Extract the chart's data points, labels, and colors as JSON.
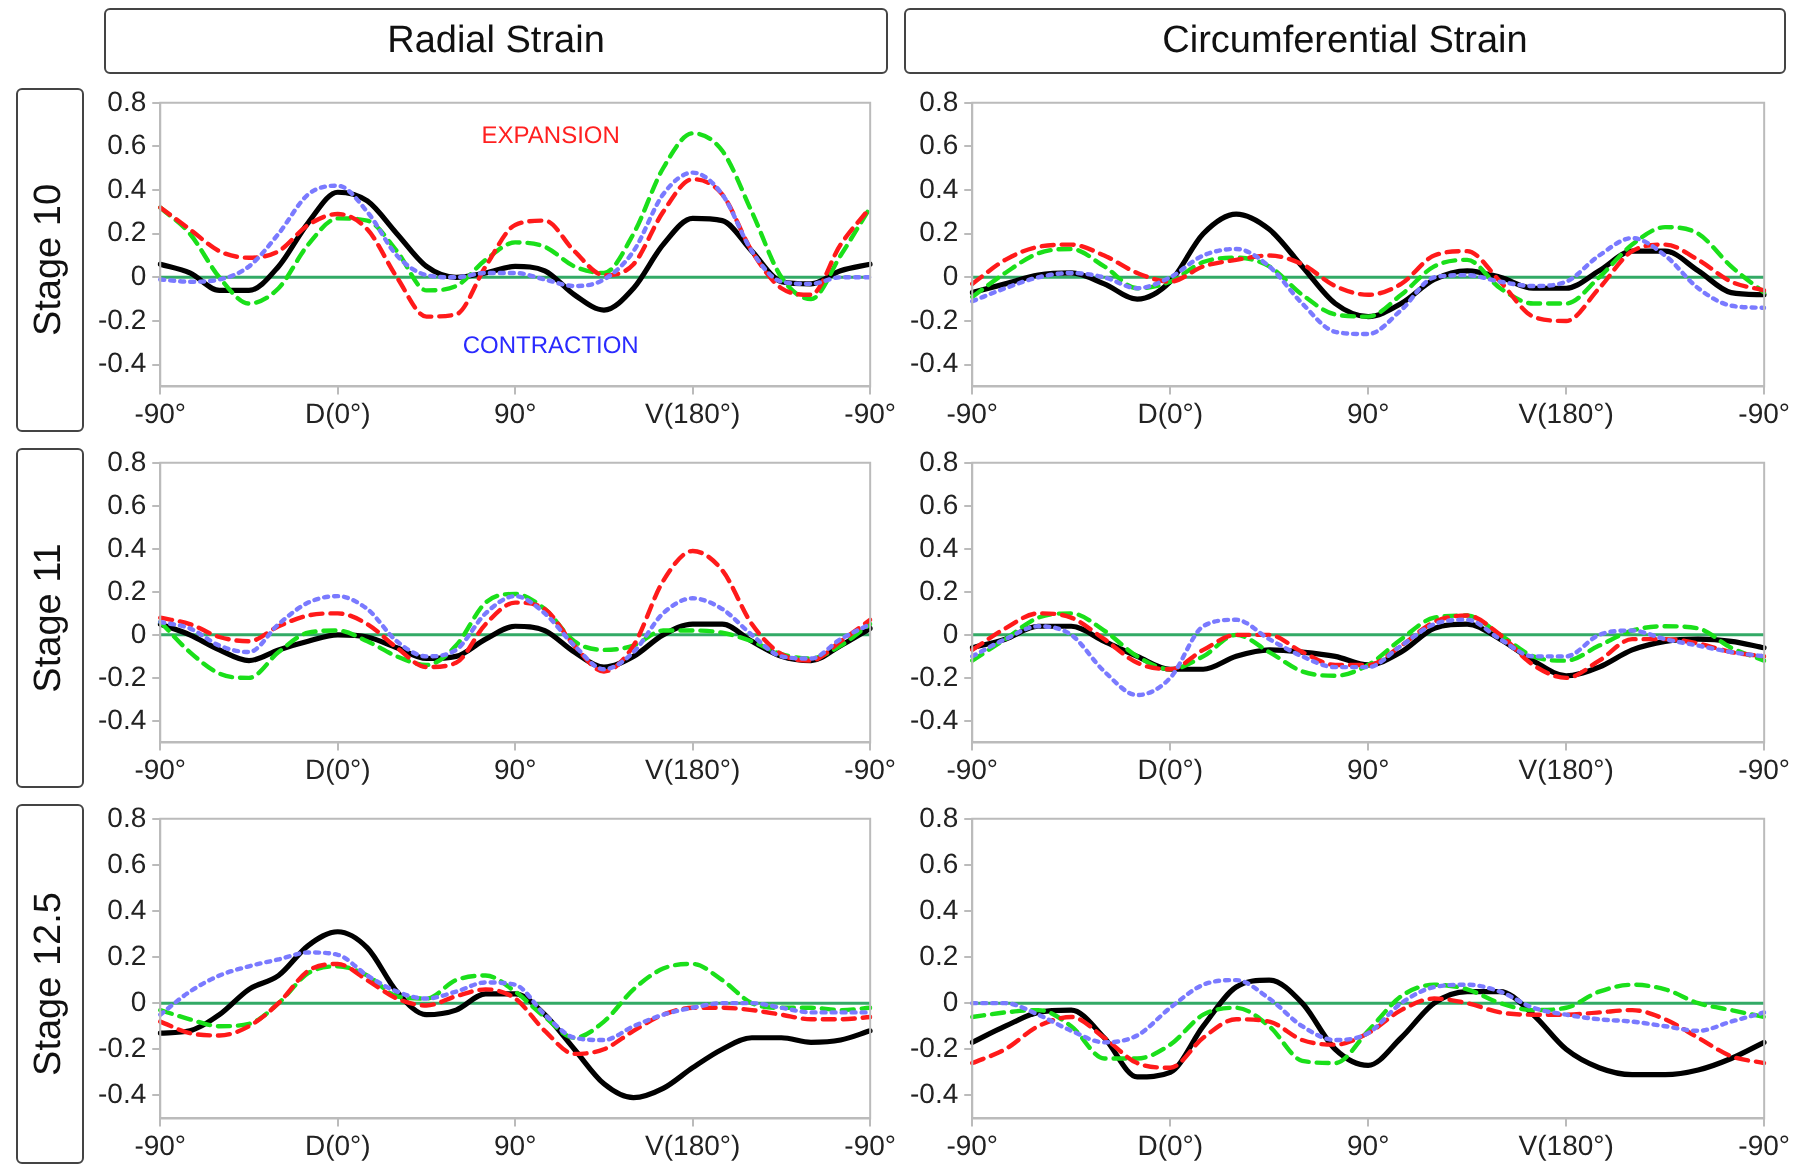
{
  "chart_data": [
    {
      "type": "line",
      "title": "Radial Strain",
      "ylabel": "Stage 10",
      "categories": [
        "-90°",
        null,
        null,
        null,
        null,
        null,
        "D(0°)",
        null,
        null,
        null,
        null,
        null,
        "90°",
        null,
        null,
        null,
        null,
        null,
        "V(180°)",
        null,
        null,
        null,
        null,
        null,
        "-90°"
      ],
      "ylim": [
        -0.5,
        0.8
      ],
      "yticks": [
        -0.4,
        -0.2,
        0,
        0.2,
        0.4,
        0.6,
        0.8
      ],
      "ref_lines": [
        {
          "axis": "y",
          "value": 0,
          "color": "#33aa66"
        }
      ],
      "annotations": [
        "EXPANSION",
        "CONTRACTION"
      ],
      "series": [
        {
          "color": "#7a7aff",
          "line_style": "dotted",
          "values": [
            -0.01,
            -0.02,
            -0.01,
            0.05,
            0.2,
            0.38,
            0.42,
            0.3,
            0.1,
            0.01,
            0.0,
            0.02,
            0.02,
            -0.01,
            -0.04,
            -0.01,
            0.12,
            0.38,
            0.48,
            0.38,
            0.12,
            -0.02,
            -0.03,
            0.0,
            0.0
          ]
        },
        {
          "color": "#ff1a1a",
          "line_style": "dashed",
          "values": [
            0.32,
            0.22,
            0.12,
            0.09,
            0.12,
            0.24,
            0.29,
            0.22,
            0.0,
            -0.18,
            -0.17,
            0.05,
            0.24,
            0.26,
            0.12,
            0.01,
            0.06,
            0.3,
            0.45,
            0.38,
            0.12,
            -0.05,
            -0.08,
            0.15,
            0.32
          ]
        },
        {
          "color": "#1adf1a",
          "line_style": "dashed",
          "values": [
            0.32,
            0.2,
            0.0,
            -0.12,
            -0.05,
            0.15,
            0.27,
            0.26,
            0.12,
            -0.06,
            -0.04,
            0.08,
            0.16,
            0.14,
            0.05,
            0.02,
            0.2,
            0.5,
            0.66,
            0.58,
            0.3,
            0.0,
            -0.1,
            0.1,
            0.32
          ]
        },
        {
          "color": "#000000",
          "line_style": "solid",
          "values": [
            0.06,
            0.02,
            -0.06,
            -0.06,
            0.05,
            0.25,
            0.39,
            0.35,
            0.2,
            0.05,
            0.0,
            0.02,
            0.05,
            0.03,
            -0.08,
            -0.15,
            -0.05,
            0.15,
            0.27,
            0.26,
            0.12,
            -0.02,
            -0.03,
            0.03,
            0.06
          ]
        }
      ]
    },
    {
      "type": "line",
      "title": "Circumferential Strain",
      "categories": [
        "-90°",
        null,
        null,
        null,
        null,
        null,
        "D(0°)",
        null,
        null,
        null,
        null,
        null,
        "90°",
        null,
        null,
        null,
        null,
        null,
        "V(180°)",
        null,
        null,
        null,
        null,
        null,
        "-90°"
      ],
      "ylim": [
        -0.5,
        0.8
      ],
      "yticks": [
        -0.4,
        -0.2,
        0,
        0.2,
        0.4,
        0.6,
        0.8
      ],
      "ref_lines": [
        {
          "axis": "y",
          "value": 0,
          "color": "#33aa66"
        }
      ],
      "series": [
        {
          "color": "#7a7aff",
          "line_style": "dotted",
          "values": [
            -0.11,
            -0.05,
            0.0,
            0.02,
            0.0,
            -0.05,
            0.0,
            0.1,
            0.13,
            0.05,
            -0.12,
            -0.25,
            -0.26,
            -0.15,
            0.0,
            0.01,
            -0.02,
            -0.04,
            -0.02,
            0.1,
            0.18,
            0.1,
            -0.05,
            -0.13,
            -0.14
          ]
        },
        {
          "color": "#ff1a1a",
          "line_style": "dashed",
          "values": [
            -0.03,
            0.08,
            0.14,
            0.15,
            0.1,
            0.02,
            -0.02,
            0.05,
            0.08,
            0.1,
            0.06,
            -0.04,
            -0.08,
            -0.03,
            0.1,
            0.12,
            -0.02,
            -0.18,
            -0.2,
            -0.05,
            0.12,
            0.15,
            0.08,
            -0.02,
            -0.06
          ]
        },
        {
          "color": "#1adf1a",
          "line_style": "dashed",
          "values": [
            -0.09,
            0.02,
            0.11,
            0.13,
            0.05,
            -0.05,
            -0.02,
            0.07,
            0.09,
            0.05,
            -0.08,
            -0.17,
            -0.18,
            -0.08,
            0.05,
            0.08,
            -0.05,
            -0.12,
            -0.12,
            0.0,
            0.15,
            0.23,
            0.2,
            0.05,
            -0.07
          ]
        },
        {
          "color": "#000000",
          "line_style": "solid",
          "values": [
            -0.07,
            -0.03,
            0.01,
            0.02,
            -0.03,
            -0.1,
            -0.02,
            0.2,
            0.29,
            0.22,
            0.05,
            -0.12,
            -0.18,
            -0.12,
            -0.01,
            0.03,
            0.0,
            -0.05,
            -0.05,
            0.03,
            0.12,
            0.12,
            0.03,
            -0.07,
            -0.08
          ]
        }
      ]
    },
    {
      "type": "line",
      "ylabel": "Stage 11",
      "categories": [
        "-90°",
        null,
        null,
        null,
        null,
        null,
        "D(0°)",
        null,
        null,
        null,
        null,
        null,
        "90°",
        null,
        null,
        null,
        null,
        null,
        "V(180°)",
        null,
        null,
        null,
        null,
        null,
        "-90°"
      ],
      "ylim": [
        -0.5,
        0.8
      ],
      "yticks": [
        -0.4,
        -0.2,
        0,
        0.2,
        0.4,
        0.6,
        0.8
      ],
      "ref_lines": [
        {
          "axis": "y",
          "value": 0,
          "color": "#33aa66"
        }
      ],
      "series": [
        {
          "color": "#7a7aff",
          "line_style": "dotted",
          "values": [
            0.06,
            0.03,
            -0.05,
            -0.08,
            0.05,
            0.15,
            0.18,
            0.12,
            -0.03,
            -0.1,
            -0.07,
            0.1,
            0.18,
            0.1,
            -0.05,
            -0.16,
            -0.08,
            0.1,
            0.17,
            0.12,
            0.0,
            -0.1,
            -0.11,
            -0.02,
            0.05
          ]
        },
        {
          "color": "#ff1a1a",
          "line_style": "dashed",
          "values": [
            0.08,
            0.05,
            -0.01,
            -0.03,
            0.04,
            0.09,
            0.1,
            0.05,
            -0.06,
            -0.15,
            -0.13,
            0.05,
            0.15,
            0.12,
            -0.05,
            -0.17,
            -0.05,
            0.25,
            0.39,
            0.3,
            0.05,
            -0.09,
            -0.12,
            -0.03,
            0.07
          ]
        },
        {
          "color": "#1adf1a",
          "line_style": "dashed",
          "values": [
            0.06,
            -0.08,
            -0.18,
            -0.2,
            -0.08,
            0.01,
            0.02,
            -0.03,
            -0.1,
            -0.14,
            -0.05,
            0.15,
            0.19,
            0.12,
            -0.03,
            -0.07,
            -0.05,
            0.02,
            0.02,
            0.01,
            -0.03,
            -0.09,
            -0.11,
            -0.05,
            0.05
          ]
        },
        {
          "color": "#000000",
          "line_style": "solid",
          "values": [
            0.05,
            0.0,
            -0.07,
            -0.12,
            -0.07,
            -0.03,
            0.0,
            -0.01,
            -0.06,
            -0.11,
            -0.1,
            -0.02,
            0.04,
            0.02,
            -0.08,
            -0.15,
            -0.1,
            0.0,
            0.05,
            0.05,
            -0.03,
            -0.1,
            -0.12,
            -0.05,
            0.03
          ]
        }
      ]
    },
    {
      "type": "line",
      "categories": [
        "-90°",
        null,
        null,
        null,
        null,
        null,
        "D(0°)",
        null,
        null,
        null,
        null,
        null,
        "90°",
        null,
        null,
        null,
        null,
        null,
        "V(180°)",
        null,
        null,
        null,
        null,
        null,
        "-90°"
      ],
      "ylim": [
        -0.5,
        0.8
      ],
      "yticks": [
        -0.4,
        -0.2,
        0,
        0.2,
        0.4,
        0.6,
        0.8
      ],
      "ref_lines": [
        {
          "axis": "y",
          "value": 0,
          "color": "#33aa66"
        }
      ],
      "series": [
        {
          "color": "#7a7aff",
          "line_style": "dotted",
          "values": [
            -0.1,
            -0.02,
            0.04,
            0.0,
            -0.17,
            -0.28,
            -0.2,
            0.04,
            0.07,
            -0.02,
            -0.1,
            -0.15,
            -0.15,
            -0.05,
            0.05,
            0.07,
            -0.02,
            -0.1,
            -0.1,
            0.0,
            0.02,
            -0.02,
            -0.05,
            -0.08,
            -0.1
          ]
        },
        {
          "color": "#ff1a1a",
          "line_style": "dashed",
          "values": [
            -0.07,
            0.03,
            0.1,
            0.08,
            -0.02,
            -0.13,
            -0.16,
            -0.07,
            0.0,
            0.0,
            -0.08,
            -0.14,
            -0.14,
            -0.05,
            0.06,
            0.09,
            0.0,
            -0.14,
            -0.2,
            -0.12,
            -0.02,
            -0.02,
            -0.04,
            -0.08,
            -0.1
          ]
        },
        {
          "color": "#1adf1a",
          "line_style": "dashed",
          "values": [
            -0.12,
            -0.02,
            0.08,
            0.1,
            0.02,
            -0.1,
            -0.16,
            -0.1,
            0.0,
            -0.08,
            -0.17,
            -0.19,
            -0.14,
            -0.02,
            0.08,
            0.09,
            0.0,
            -0.1,
            -0.12,
            -0.05,
            0.02,
            0.04,
            0.03,
            -0.06,
            -0.12
          ]
        },
        {
          "color": "#000000",
          "line_style": "solid",
          "values": [
            -0.06,
            -0.02,
            0.04,
            0.04,
            -0.03,
            -0.1,
            -0.16,
            -0.16,
            -0.1,
            -0.07,
            -0.08,
            -0.1,
            -0.14,
            -0.08,
            0.03,
            0.05,
            -0.02,
            -0.12,
            -0.19,
            -0.15,
            -0.07,
            -0.03,
            -0.02,
            -0.03,
            -0.06
          ]
        }
      ]
    },
    {
      "type": "line",
      "ylabel": "Stage 12.5",
      "categories": [
        "-90°",
        null,
        null,
        null,
        null,
        null,
        "D(0°)",
        null,
        null,
        null,
        null,
        null,
        "90°",
        null,
        null,
        null,
        null,
        null,
        "V(180°)",
        null,
        null,
        null,
        null,
        null,
        "-90°"
      ],
      "ylim": [
        -0.5,
        0.8
      ],
      "yticks": [
        -0.4,
        -0.2,
        0,
        0.2,
        0.4,
        0.6,
        0.8
      ],
      "ref_lines": [
        {
          "axis": "y",
          "value": 0,
          "color": "#33aa66"
        }
      ],
      "series": [
        {
          "color": "#7a7aff",
          "line_style": "dotted",
          "values": [
            -0.05,
            0.05,
            0.12,
            0.16,
            0.19,
            0.22,
            0.21,
            0.12,
            0.05,
            0.02,
            0.05,
            0.09,
            0.08,
            -0.05,
            -0.15,
            -0.16,
            -0.1,
            -0.05,
            -0.02,
            0.0,
            0.0,
            -0.02,
            -0.04,
            -0.04,
            -0.04
          ]
        },
        {
          "color": "#ff1a1a",
          "line_style": "dashed",
          "values": [
            -0.08,
            -0.13,
            -0.14,
            -0.1,
            0.0,
            0.14,
            0.17,
            0.1,
            0.02,
            -0.01,
            0.03,
            0.06,
            0.02,
            -0.12,
            -0.22,
            -0.2,
            -0.12,
            -0.05,
            -0.02,
            -0.02,
            -0.03,
            -0.05,
            -0.07,
            -0.07,
            -0.06
          ]
        },
        {
          "color": "#1adf1a",
          "line_style": "dashed",
          "values": [
            -0.03,
            -0.07,
            -0.1,
            -0.09,
            0.0,
            0.13,
            0.16,
            0.12,
            0.03,
            0.02,
            0.1,
            0.12,
            0.05,
            -0.06,
            -0.15,
            -0.08,
            0.06,
            0.15,
            0.17,
            0.1,
            0.0,
            -0.02,
            -0.02,
            -0.03,
            -0.02
          ]
        },
        {
          "color": "#000000",
          "line_style": "solid",
          "values": [
            -0.13,
            -0.12,
            -0.05,
            0.06,
            0.12,
            0.25,
            0.31,
            0.24,
            0.05,
            -0.05,
            -0.03,
            0.04,
            0.04,
            -0.05,
            -0.2,
            -0.35,
            -0.41,
            -0.37,
            -0.28,
            -0.2,
            -0.15,
            -0.15,
            -0.17,
            -0.16,
            -0.12
          ]
        }
      ]
    },
    {
      "type": "line",
      "categories": [
        "-90°",
        null,
        null,
        null,
        null,
        null,
        "D(0°)",
        null,
        null,
        null,
        null,
        null,
        "90°",
        null,
        null,
        null,
        null,
        null,
        "V(180°)",
        null,
        null,
        null,
        null,
        null,
        "-90°"
      ],
      "ylim": [
        -0.5,
        0.8
      ],
      "yticks": [
        -0.4,
        -0.2,
        0,
        0.2,
        0.4,
        0.6,
        0.8
      ],
      "ref_lines": [
        {
          "axis": "y",
          "value": 0,
          "color": "#33aa66"
        }
      ],
      "series": [
        {
          "color": "#7a7aff",
          "line_style": "dotted",
          "values": [
            0.0,
            0.0,
            -0.05,
            -0.12,
            -0.17,
            -0.14,
            -0.02,
            0.08,
            0.1,
            0.02,
            -0.1,
            -0.16,
            -0.13,
            0.0,
            0.07,
            0.08,
            0.05,
            -0.02,
            -0.05,
            -0.07,
            -0.08,
            -0.1,
            -0.12,
            -0.08,
            -0.04
          ]
        },
        {
          "color": "#ff1a1a",
          "line_style": "dashed",
          "values": [
            -0.26,
            -0.2,
            -0.1,
            -0.06,
            -0.15,
            -0.26,
            -0.28,
            -0.15,
            -0.07,
            -0.08,
            -0.16,
            -0.18,
            -0.13,
            -0.03,
            0.02,
            0.0,
            -0.04,
            -0.05,
            -0.05,
            -0.04,
            -0.03,
            -0.07,
            -0.15,
            -0.23,
            -0.26
          ]
        },
        {
          "color": "#1adf1a",
          "line_style": "dashed",
          "values": [
            -0.06,
            -0.04,
            -0.03,
            -0.1,
            -0.24,
            -0.24,
            -0.18,
            -0.05,
            -0.02,
            -0.1,
            -0.25,
            -0.26,
            -0.12,
            0.03,
            0.08,
            0.06,
            0.0,
            -0.03,
            -0.02,
            0.05,
            0.08,
            0.06,
            0.0,
            -0.03,
            -0.06
          ]
        },
        {
          "color": "#000000",
          "line_style": "solid",
          "values": [
            -0.17,
            -0.1,
            -0.04,
            -0.03,
            -0.15,
            -0.32,
            -0.3,
            -0.1,
            0.07,
            0.1,
            0.0,
            -0.2,
            -0.27,
            -0.15,
            0.0,
            0.05,
            0.05,
            -0.05,
            -0.2,
            -0.28,
            -0.31,
            -0.31,
            -0.29,
            -0.24,
            -0.17
          ]
        }
      ]
    }
  ]
}
